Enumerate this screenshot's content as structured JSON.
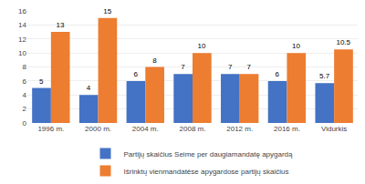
{
  "chart_data": {
    "type": "bar",
    "categories": [
      "1996 m.",
      "2000 m.",
      "2004 m.",
      "2008 m.",
      "2012 m.",
      "2016 m.",
      "Vidurkis"
    ],
    "series": [
      {
        "name": "Partijų skaičius Seime per daugiamandatę apygardą",
        "color": "#4472C4",
        "values": [
          5,
          4,
          6,
          7,
          7,
          6,
          5.7
        ]
      },
      {
        "name": "Išrinktų vienmandatėse apygardose partijų skaičius",
        "color": "#ED7D31",
        "values": [
          13,
          15,
          8,
          10,
          7,
          10,
          10.5
        ]
      }
    ],
    "ylim": [
      0,
      16
    ],
    "yticks": [
      0,
      2,
      4,
      6,
      8,
      10,
      12,
      14,
      16
    ],
    "grid": true,
    "data_labels": true,
    "legend": "bottom"
  }
}
